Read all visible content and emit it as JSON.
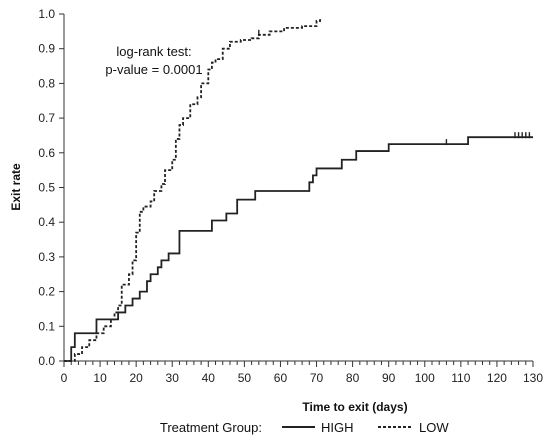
{
  "chart_data": {
    "type": "line",
    "xlabel": "Time to exit (days)",
    "ylabel": "Exit rate",
    "xlim": [
      0,
      130
    ],
    "ylim": [
      0,
      1.0
    ],
    "x_ticks": [
      0,
      10,
      20,
      30,
      40,
      50,
      60,
      70,
      80,
      90,
      100,
      110,
      120,
      130
    ],
    "y_ticks": [
      0.0,
      0.1,
      0.2,
      0.3,
      0.4,
      0.5,
      0.6,
      0.7,
      0.8,
      0.9,
      1.0
    ],
    "grid": false,
    "legend_position": "bottom",
    "legend_title": "Treatment Group:",
    "annotation_line1": "log-rank test:",
    "annotation_line2": "p-value = 0.0001",
    "series": [
      {
        "name": "HIGH",
        "line_style": "solid",
        "color": "#222222",
        "x": [
          0,
          2,
          3,
          7,
          9,
          13,
          15,
          17,
          19,
          21,
          23,
          24,
          26,
          27,
          29,
          32,
          37,
          41,
          45,
          48,
          53,
          60,
          68,
          69,
          70,
          77,
          81,
          90,
          101,
          112,
          130
        ],
        "y": [
          0,
          0.04,
          0.08,
          0.08,
          0.12,
          0.12,
          0.14,
          0.16,
          0.18,
          0.2,
          0.23,
          0.25,
          0.27,
          0.29,
          0.31,
          0.375,
          0.375,
          0.405,
          0.425,
          0.465,
          0.49,
          0.49,
          0.515,
          0.535,
          0.555,
          0.58,
          0.605,
          0.625,
          0.625,
          0.645,
          0.645
        ],
        "censor_x": [
          106,
          125,
          126,
          127,
          128,
          129
        ]
      },
      {
        "name": "LOW",
        "line_style": "dashed",
        "color": "#222222",
        "x": [
          0,
          3,
          5,
          7,
          9,
          11,
          13,
          14,
          15,
          16,
          18,
          19,
          20,
          21,
          22,
          24,
          25,
          27,
          28,
          30,
          31,
          32,
          33,
          35,
          37,
          38,
          40,
          41,
          42,
          44,
          46,
          49,
          52,
          54,
          57,
          61,
          66,
          70,
          71
        ],
        "y": [
          0,
          0.02,
          0.04,
          0.06,
          0.08,
          0.1,
          0.12,
          0.14,
          0.16,
          0.22,
          0.25,
          0.29,
          0.37,
          0.43,
          0.445,
          0.46,
          0.49,
          0.51,
          0.55,
          0.58,
          0.64,
          0.68,
          0.7,
          0.74,
          0.76,
          0.8,
          0.84,
          0.86,
          0.87,
          0.9,
          0.92,
          0.925,
          0.93,
          0.94,
          0.95,
          0.96,
          0.965,
          0.98,
          0.99
        ],
        "censor_x": [
          54
        ]
      }
    ]
  }
}
